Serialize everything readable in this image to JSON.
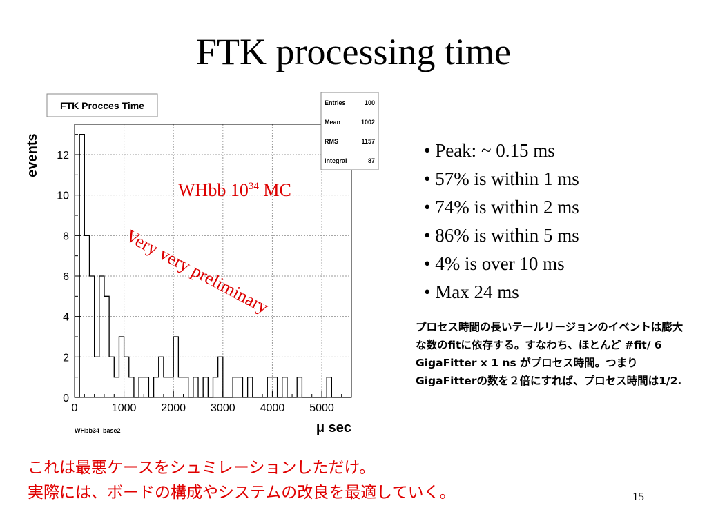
{
  "slide": {
    "title": "FTK processing time",
    "bullets": [
      "• Peak: ~ 0.15 ms",
      "• 57% is within 1 ms",
      "• 74% is within 2 ms",
      "• 86% is within 5 ms",
      "• 4% is over 10 ms",
      "• Max 24 ms"
    ],
    "note": "プロセス時間の長いテールリージョンのイベントは膨大な数のfitに依存する。すなわち、ほとんど #fit/ 6 GigaFitter x 1 ns がプロセス時間。つまりGigaFitterの数を２倍にすれば、プロセス時間は1/2.",
    "footer_lines": [
      "これは最悪ケースをシュミレーションしただけ。",
      "実際には、ボードの構成やシステムの改良を最適していく。"
    ],
    "page_number": "15",
    "annotations": {
      "sample_prefix": "WHbb 10",
      "sample_exp": "34",
      "sample_suffix": " MC",
      "watermark": "Very very preliminary"
    }
  },
  "chart_data": {
    "type": "histogram",
    "title": "FTK Procces Time",
    "xlabel": "μ sec",
    "ylabel": "events",
    "histogram_name": "WHbb34_base2",
    "xlim": [
      0,
      5600
    ],
    "ylim": [
      0,
      13.5
    ],
    "bin_width": 100,
    "bin_start": 0,
    "x_ticks": [
      0,
      1000,
      2000,
      3000,
      4000,
      5000
    ],
    "x_tick_labels": [
      "0",
      "1000",
      "2000",
      "3000",
      "4000",
      "5000"
    ],
    "y_ticks": [
      0,
      2,
      4,
      6,
      8,
      10,
      12
    ],
    "y_tick_labels": [
      "0",
      "2",
      "4",
      "6",
      "8",
      "10",
      "12"
    ],
    "grid": true,
    "values": [
      0,
      13,
      8,
      6,
      2,
      6,
      5,
      2,
      1,
      3,
      2,
      1,
      0,
      1,
      1,
      0,
      1,
      2,
      1,
      1,
      3,
      1,
      1,
      0,
      1,
      0,
      1,
      0,
      1,
      2,
      0,
      0,
      1,
      1,
      0,
      1,
      0,
      0,
      0,
      1,
      1,
      0,
      1,
      0,
      0,
      1,
      0,
      0,
      0,
      0,
      0,
      1,
      0,
      0,
      0,
      0
    ],
    "stats": {
      "rows": [
        {
          "label": "Entries",
          "value": "100"
        },
        {
          "label": "Mean",
          "value": "1002"
        },
        {
          "label": "RMS",
          "value": "1157"
        },
        {
          "label": "Integral",
          "value": "87"
        }
      ]
    },
    "line_color": "#000000",
    "annotation_color": "#dd0000"
  }
}
